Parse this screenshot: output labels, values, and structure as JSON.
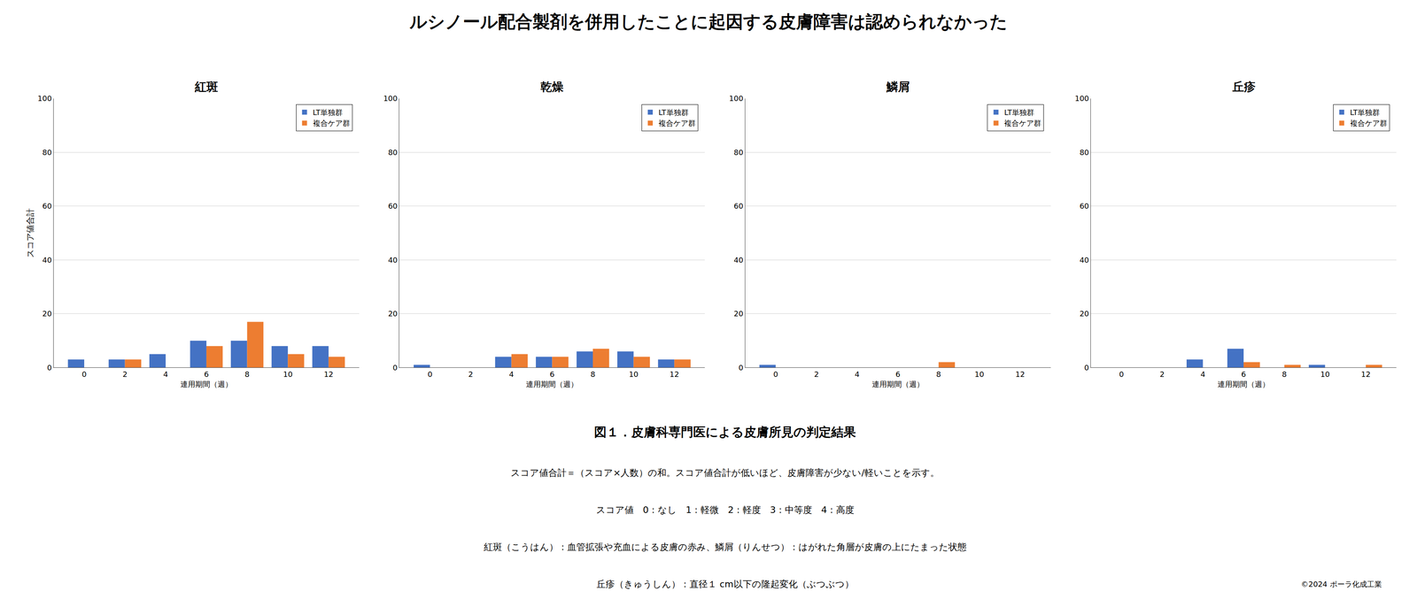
{
  "title": "ルシノール配合製剤を併用したことに起因する皮膚障害は認められなかった",
  "subtitle": "図１．皮膚科専門医による皮膚所見の判定結果",
  "annotations": [
    "スコア値合計＝（スコア×人数）の和。スコア値合計が低いほど、皮膚障害が少ない/軽いことを示す。",
    "スコア値　0：なし　1：軽微　2：軽度　3：中等度　4：高度",
    "紅斑（こうはん）：血管拡張や充血による皮膚の赤み、鱗屑（りんせつ）：はがれた角層が皮膚の上にたまった状態",
    "丘疹（きゅうしん）：直径１ cm以下の隆起変化（ぶつぶつ）",
    "©2024 ポーラ化成工業"
  ],
  "chart_data": [
    {
      "type": "bar",
      "title": "紅斑",
      "x": [
        0,
        2,
        4,
        6,
        8,
        10,
        12
      ],
      "series": [
        {
          "name": "LT単独群",
          "color": "#4472C4",
          "values": [
            3,
            3,
            5,
            10,
            10,
            8,
            8
          ]
        },
        {
          "name": "複合ケア群",
          "color": "#ED7D31",
          "values": [
            0,
            3,
            0,
            8,
            17,
            5,
            4
          ]
        }
      ],
      "xlabel": "連用期間（週）",
      "ylabel": "スコア値合計",
      "xlim": [
        -1.5,
        13.5
      ],
      "xticks": [
        0,
        2,
        4,
        6,
        8,
        10,
        12
      ],
      "ylim": [
        0,
        100
      ],
      "yticks": [
        0,
        20,
        40,
        60,
        80,
        100
      ],
      "grid": true,
      "legend": "upper right"
    },
    {
      "type": "bar",
      "title": "乾燥",
      "x": [
        0,
        2,
        4,
        6,
        8,
        10,
        12
      ],
      "series": [
        {
          "name": "LT単独群",
          "color": "#4472C4",
          "values": [
            1,
            0,
            4,
            4,
            6,
            6,
            3
          ]
        },
        {
          "name": "複合ケア群",
          "color": "#ED7D31",
          "values": [
            0,
            0,
            5,
            4,
            7,
            4,
            3
          ]
        }
      ],
      "xlabel": "連用期間（週）",
      "xlim": [
        -1.5,
        13.5
      ],
      "xticks": [
        0,
        2,
        4,
        6,
        8,
        10,
        12
      ],
      "ylim": [
        0,
        100
      ],
      "yticks": [
        0,
        20,
        40,
        60,
        80,
        100
      ],
      "grid": true,
      "legend": "upper right"
    },
    {
      "type": "bar",
      "title": "鱗屑",
      "x": [
        0,
        2,
        4,
        6,
        8,
        10,
        12
      ],
      "series": [
        {
          "name": "LT単独群",
          "color": "#4472C4",
          "values": [
            1,
            0,
            0,
            0,
            0,
            0,
            0
          ]
        },
        {
          "name": "複合ケア群",
          "color": "#ED7D31",
          "values": [
            0,
            0,
            0,
            0,
            2,
            0,
            0
          ]
        }
      ],
      "xlabel": "連用期間（週）",
      "xlim": [
        -1.5,
        13.5
      ],
      "xticks": [
        0,
        2,
        4,
        6,
        8,
        10,
        12
      ],
      "ylim": [
        0,
        100
      ],
      "yticks": [
        0,
        20,
        40,
        60,
        80,
        100
      ],
      "grid": true,
      "legend": "upper right"
    },
    {
      "type": "bar",
      "title": "丘疹",
      "x": [
        0,
        2,
        4,
        6,
        8,
        10,
        12
      ],
      "series": [
        {
          "name": "LT単独群",
          "color": "#4472C4",
          "values": [
            0,
            0,
            3,
            7,
            0,
            1,
            0
          ]
        },
        {
          "name": "複合ケア群",
          "color": "#ED7D31",
          "values": [
            0,
            0,
            0,
            2,
            1,
            0,
            1
          ]
        }
      ],
      "xlabel": "連用期間（週）",
      "xlim": [
        -1.5,
        13.5
      ],
      "xticks": [
        0,
        2,
        4,
        6,
        8,
        10,
        12
      ],
      "ylim": [
        0,
        100
      ],
      "yticks": [
        0,
        20,
        40,
        60,
        80,
        100
      ],
      "grid": true,
      "legend": "upper right"
    }
  ]
}
